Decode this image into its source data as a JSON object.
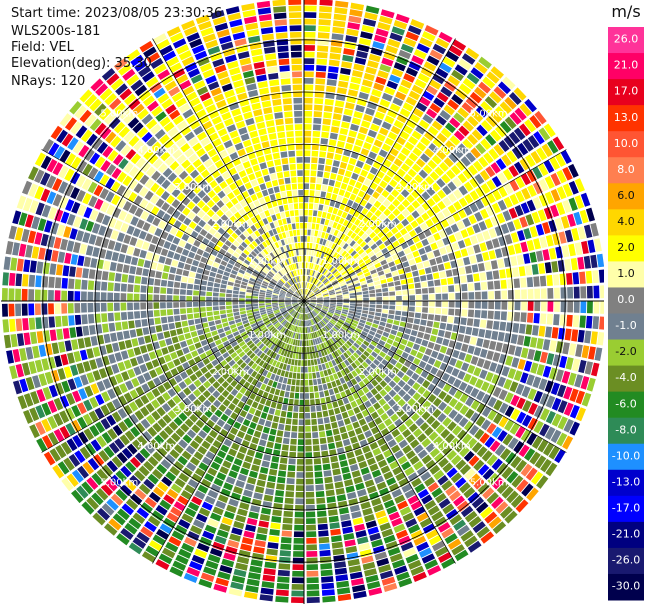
{
  "header": {
    "start_time": "Start time: 2023/08/05 23:30:36",
    "instrument": "WLS200s-181",
    "field": "Field: VEL",
    "elevation": "Elevation(deg): 35.30",
    "nrays": "NRays: 120"
  },
  "chart_data": {
    "type": "heatmap",
    "projection": "polar-ppi",
    "range_rings_km": [
      1,
      2,
      3,
      4,
      5
    ],
    "ring_labels": [
      "1.00km",
      "2.00km",
      "3.00km",
      "4.00km",
      "5.00km"
    ],
    "max_range_km": 5.8,
    "n_rays": 120,
    "colorbar": {
      "unit": "m/s",
      "ticks": [
        "26.0",
        "21.0",
        "17.0",
        "13.0",
        "10.0",
        "8.0",
        "6.0",
        "4.0",
        "2.0",
        "1.0",
        "0.0",
        "-1.0",
        "-2.0",
        "-4.0",
        "-6.0",
        "-8.0",
        "-10.0",
        "-13.0",
        "-17.0",
        "-21.0",
        "-26.0",
        "-30.0"
      ],
      "colors": [
        "#ff3399",
        "#ff0066",
        "#e8001e",
        "#ff3300",
        "#ff5533",
        "#ff7f50",
        "#ffa500",
        "#ffd700",
        "#ffff00",
        "#ffffaa",
        "#808080",
        "#708090",
        "#9acd32",
        "#6b8e23",
        "#228b22",
        "#2e8b57",
        "#1e90ff",
        "#0000cd",
        "#0000ff",
        "#000080",
        "#191970",
        "#00004d"
      ]
    }
  }
}
